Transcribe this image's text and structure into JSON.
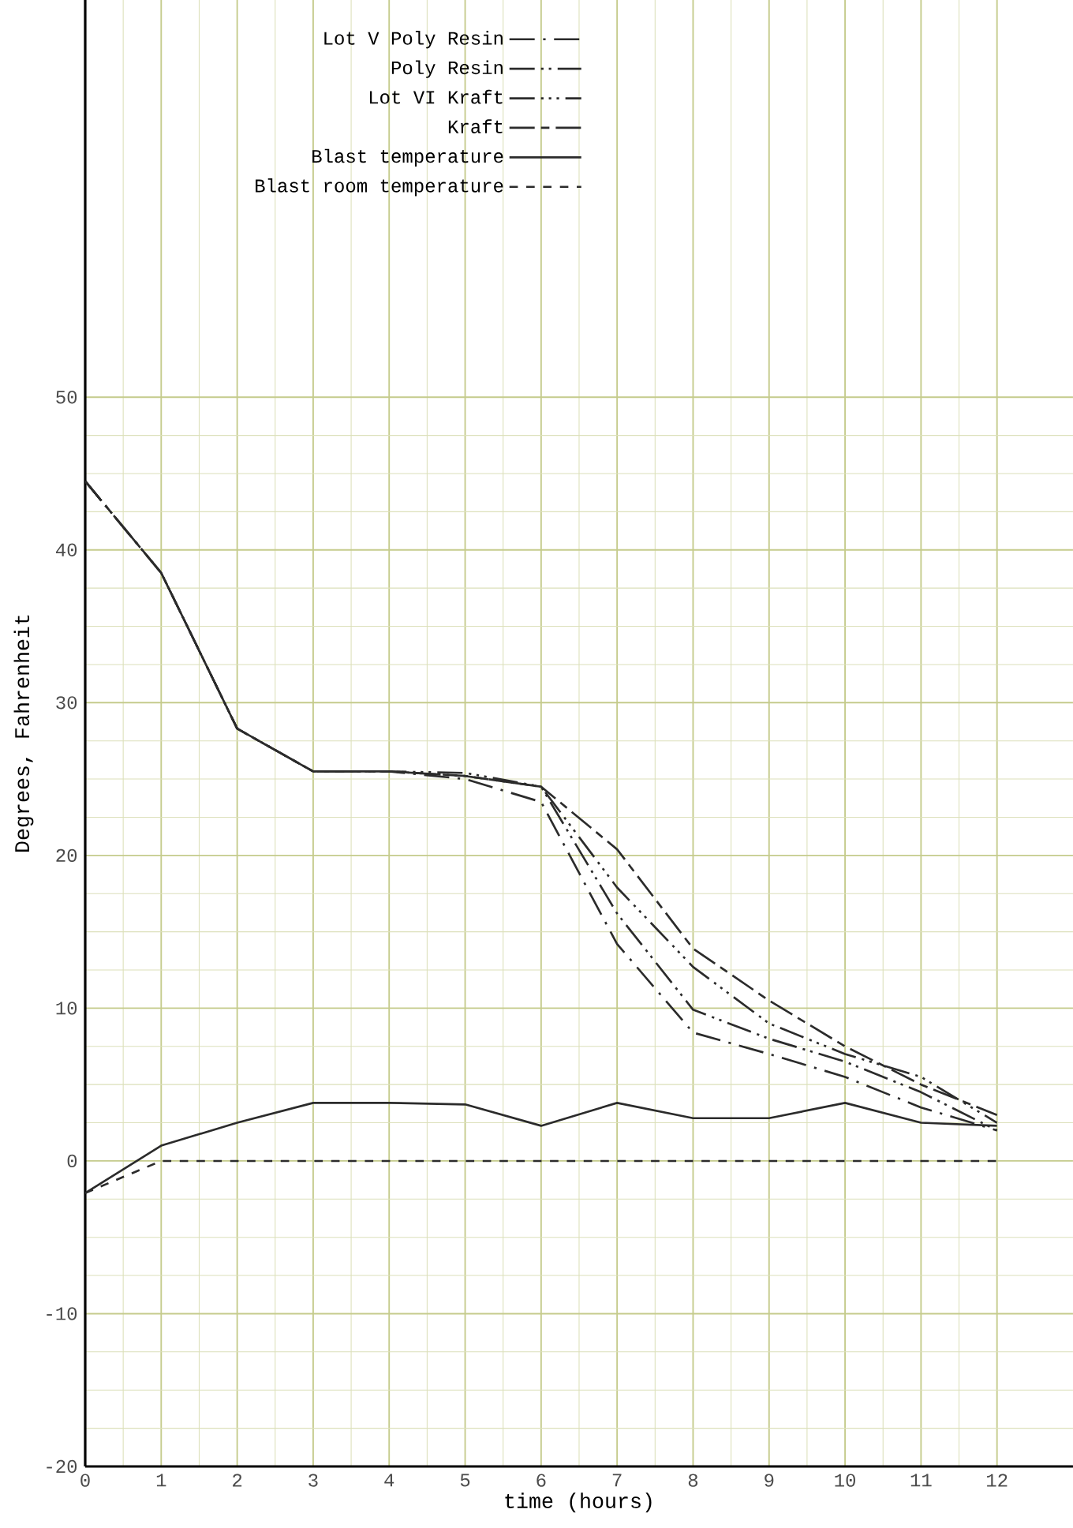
{
  "chart_data": {
    "type": "line",
    "xlabel": "time (hours)",
    "ylabel": "Degrees, Fahrenheit",
    "x": [
      0,
      1,
      2,
      3,
      4,
      5,
      6,
      7,
      8,
      9,
      10,
      11,
      12
    ],
    "series": [
      {
        "name": "Lot V  Poly Resin",
        "color": "#2b2b2b",
        "line_style": "dashdot",
        "values": [
          44.5,
          38.5,
          28.3,
          25.5,
          25.5,
          25.0,
          23.5,
          14.2,
          8.4,
          7.0,
          5.5,
          3.5,
          2.0
        ]
      },
      {
        "name": "Poly Resin",
        "color": "#2b2b2b",
        "line_style": "dashdotdot",
        "values": [
          44.5,
          38.5,
          28.3,
          25.5,
          25.5,
          25.2,
          24.5,
          16.2,
          9.9,
          8.0,
          6.5,
          4.5,
          2.0
        ]
      },
      {
        "name": "Lot VI  Kraft",
        "color": "#2b2b2b",
        "line_style": "dashdotdotdot",
        "values": [
          44.5,
          38.5,
          28.3,
          25.5,
          25.5,
          25.4,
          24.5,
          17.9,
          12.7,
          9.0,
          7.0,
          5.5,
          2.5
        ]
      },
      {
        "name": "Kraft",
        "color": "#2b2b2b",
        "line_style": "longshort",
        "values": [
          44.5,
          38.5,
          28.3,
          25.5,
          25.5,
          25.2,
          24.5,
          20.4,
          13.9,
          10.5,
          7.5,
          5.0,
          3.0
        ]
      },
      {
        "name": "Blast temperature",
        "color": "#2b2b2b",
        "line_style": "solid",
        "values": [
          -2.1,
          1.0,
          2.5,
          3.8,
          3.8,
          3.7,
          2.3,
          3.8,
          2.8,
          2.8,
          3.8,
          2.5,
          2.3
        ]
      },
      {
        "name": "Blast room temperature",
        "color": "#2b2b2b",
        "line_style": "dashed",
        "values": [
          -2.1,
          0,
          0,
          0,
          0,
          0,
          0,
          0,
          0,
          0,
          0,
          0,
          0
        ]
      }
    ],
    "xlim": [
      0,
      13
    ],
    "ylim": [
      -20,
      76
    ],
    "xticks": [
      0,
      1,
      2,
      3,
      4,
      5,
      6,
      7,
      8,
      9,
      10,
      11,
      12
    ],
    "yticks": [
      -20,
      -10,
      0,
      10,
      20,
      30,
      40,
      50
    ],
    "grid": true,
    "legend": "top"
  }
}
